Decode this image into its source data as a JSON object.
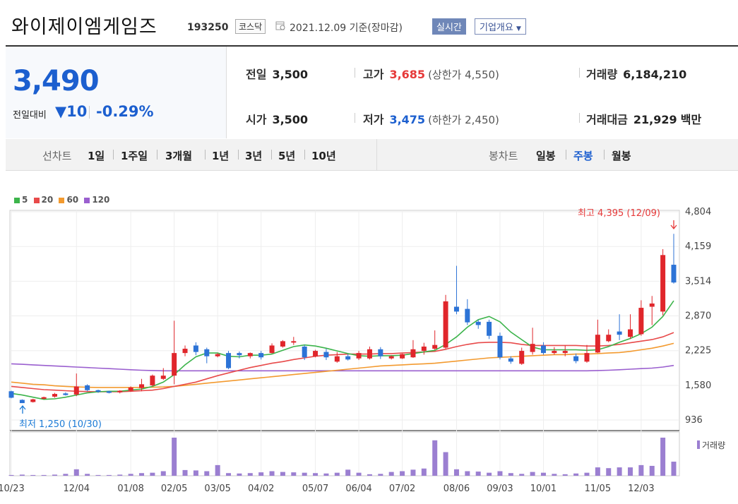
{
  "header": {
    "company": "와이제이엠게임즈",
    "code": "193250",
    "market": "코스닥",
    "date": "2021.12.09 기준(장마감)",
    "realtime": "실시간",
    "overview": "기업개요"
  },
  "quote": {
    "price": "3,490",
    "change_label": "전일대비",
    "change_value": "▼10",
    "change_rate": "-0.29%",
    "prev_label": "전일",
    "prev": "3,500",
    "open_label": "시가",
    "open": "3,500",
    "high_label": "고가",
    "high": "3,685",
    "upper_limit": "(상한가 4,550)",
    "low_label": "저가",
    "low": "3,475",
    "lower_limit": "(하한가 2,450)",
    "volume_label": "거래량",
    "volume": "6,184,210",
    "value_label": "거래대금",
    "value": "21,929",
    "value_unit": "백만"
  },
  "tabs": {
    "line_label": "선차트",
    "periods": [
      "1일",
      "1주일",
      "3개월",
      "1년",
      "3년",
      "5년",
      "10년"
    ],
    "candle_label": "봉차트",
    "candles": [
      "일봉",
      "주봉",
      "월봉"
    ],
    "active_candle": "주봉"
  },
  "legend": [
    {
      "label": "5",
      "color": "#3cb44b"
    },
    {
      "label": "20",
      "color": "#e84a4a"
    },
    {
      "label": "60",
      "color": "#f39a2f"
    },
    {
      "label": "120",
      "color": "#9a5fcf"
    }
  ],
  "chart_data": {
    "type": "candlestick",
    "y_ticks": [
      "4,804",
      "4,159",
      "3,514",
      "2,870",
      "2,225",
      "1,580",
      "936"
    ],
    "ylim": [
      936,
      4804
    ],
    "x_ticks": [
      "10/23",
      "12/04",
      "01/08",
      "02/05",
      "03/05",
      "04/02",
      "05/07",
      "06/04",
      "07/02",
      "08/06",
      "09/03",
      "10/01",
      "11/05",
      "12/03"
    ],
    "x_tick_index": [
      0,
      6,
      11,
      15,
      19,
      23,
      28,
      32,
      36,
      41,
      45,
      49,
      54,
      58
    ],
    "max_annotation": "최고 4,395 (12/09)",
    "min_annotation": "최저 1,250 (10/30)",
    "volume_label": "거래량",
    "candles": [
      {
        "o": 1470,
        "c": 1350,
        "h": 1480,
        "l": 1340
      },
      {
        "o": 1310,
        "c": 1250,
        "h": 1320,
        "l": 1250
      },
      {
        "o": 1270,
        "c": 1320,
        "h": 1330,
        "l": 1260
      },
      {
        "o": 1330,
        "c": 1360,
        "h": 1370,
        "l": 1320
      },
      {
        "o": 1370,
        "c": 1420,
        "h": 1440,
        "l": 1350
      },
      {
        "o": 1430,
        "c": 1400,
        "h": 1450,
        "l": 1390
      },
      {
        "o": 1410,
        "c": 1560,
        "h": 1800,
        "l": 1380
      },
      {
        "o": 1580,
        "c": 1490,
        "h": 1600,
        "l": 1470
      },
      {
        "o": 1490,
        "c": 1460,
        "h": 1500,
        "l": 1440
      },
      {
        "o": 1470,
        "c": 1440,
        "h": 1480,
        "l": 1430
      },
      {
        "o": 1450,
        "c": 1480,
        "h": 1490,
        "l": 1430
      },
      {
        "o": 1480,
        "c": 1540,
        "h": 1560,
        "l": 1460
      },
      {
        "o": 1530,
        "c": 1600,
        "h": 1700,
        "l": 1470
      },
      {
        "o": 1580,
        "c": 1760,
        "h": 1780,
        "l": 1560
      },
      {
        "o": 1700,
        "c": 1760,
        "h": 1900,
        "l": 1680
      },
      {
        "o": 1760,
        "c": 2180,
        "h": 2780,
        "l": 1600
      },
      {
        "o": 2180,
        "c": 2260,
        "h": 2320,
        "l": 2120
      },
      {
        "o": 2320,
        "c": 2200,
        "h": 2380,
        "l": 2140
      },
      {
        "o": 2250,
        "c": 2120,
        "h": 2280,
        "l": 1990
      },
      {
        "o": 2120,
        "c": 2160,
        "h": 2180,
        "l": 2100
      },
      {
        "o": 2180,
        "c": 1900,
        "h": 2220,
        "l": 1880
      },
      {
        "o": 2180,
        "c": 2140,
        "h": 2210,
        "l": 2080
      },
      {
        "o": 2120,
        "c": 2180,
        "h": 2190,
        "l": 2080
      },
      {
        "o": 2180,
        "c": 2100,
        "h": 2220,
        "l": 2060
      },
      {
        "o": 2180,
        "c": 2320,
        "h": 2360,
        "l": 2170
      },
      {
        "o": 2300,
        "c": 2400,
        "h": 2420,
        "l": 2280
      },
      {
        "o": 2380,
        "c": 2400,
        "h": 2480,
        "l": 2330
      },
      {
        "o": 2300,
        "c": 2100,
        "h": 2330,
        "l": 2050
      },
      {
        "o": 2120,
        "c": 2220,
        "h": 2240,
        "l": 2100
      },
      {
        "o": 2200,
        "c": 2100,
        "h": 2260,
        "l": 2050
      },
      {
        "o": 2020,
        "c": 2120,
        "h": 2200,
        "l": 2000
      },
      {
        "o": 2120,
        "c": 2060,
        "h": 2160,
        "l": 2040
      },
      {
        "o": 2080,
        "c": 2180,
        "h": 2220,
        "l": 2050
      },
      {
        "o": 2080,
        "c": 2250,
        "h": 2300,
        "l": 2060
      },
      {
        "o": 2250,
        "c": 2120,
        "h": 2290,
        "l": 2070
      },
      {
        "o": 2080,
        "c": 2120,
        "h": 2140,
        "l": 2060
      },
      {
        "o": 2080,
        "c": 2160,
        "h": 2170,
        "l": 2070
      },
      {
        "o": 2100,
        "c": 2250,
        "h": 2420,
        "l": 2090
      },
      {
        "o": 2220,
        "c": 2300,
        "h": 2370,
        "l": 2150
      },
      {
        "o": 2260,
        "c": 2330,
        "h": 2600,
        "l": 2240
      },
      {
        "o": 2280,
        "c": 3140,
        "h": 3260,
        "l": 2260
      },
      {
        "o": 3040,
        "c": 2950,
        "h": 3800,
        "l": 2900
      },
      {
        "o": 3000,
        "c": 2750,
        "h": 3180,
        "l": 2700
      },
      {
        "o": 2760,
        "c": 2700,
        "h": 2800,
        "l": 2630
      },
      {
        "o": 2760,
        "c": 2500,
        "h": 2800,
        "l": 2440
      },
      {
        "o": 2500,
        "c": 2100,
        "h": 2560,
        "l": 2060
      },
      {
        "o": 2080,
        "c": 2020,
        "h": 2120,
        "l": 1980
      },
      {
        "o": 1980,
        "c": 2220,
        "h": 2280,
        "l": 1960
      },
      {
        "o": 2200,
        "c": 2350,
        "h": 2650,
        "l": 2150
      },
      {
        "o": 2320,
        "c": 2180,
        "h": 2380,
        "l": 2150
      },
      {
        "o": 2180,
        "c": 2220,
        "h": 2290,
        "l": 2150
      },
      {
        "o": 2180,
        "c": 2220,
        "h": 2320,
        "l": 2120
      },
      {
        "o": 2120,
        "c": 2030,
        "h": 2170,
        "l": 1990
      },
      {
        "o": 2020,
        "c": 2180,
        "h": 2330,
        "l": 2000
      },
      {
        "o": 2190,
        "c": 2520,
        "h": 2800,
        "l": 2180
      },
      {
        "o": 2400,
        "c": 2520,
        "h": 2620,
        "l": 2380
      },
      {
        "o": 2580,
        "c": 2520,
        "h": 2900,
        "l": 2420
      },
      {
        "o": 2480,
        "c": 2620,
        "h": 2900,
        "l": 2440
      },
      {
        "o": 2530,
        "c": 3020,
        "h": 3160,
        "l": 2500
      },
      {
        "o": 3040,
        "c": 3100,
        "h": 3240,
        "l": 2700
      },
      {
        "o": 2950,
        "c": 4000,
        "h": 4110,
        "l": 2880
      },
      {
        "o": 3820,
        "c": 3490,
        "h": 4395,
        "l": 3470
      }
    ],
    "ma5": [
      1430,
      1400,
      1360,
      1320,
      1330,
      1360,
      1400,
      1440,
      1460,
      1470,
      1470,
      1490,
      1510,
      1560,
      1640,
      1780,
      1960,
      2110,
      2180,
      2180,
      2120,
      2110,
      2140,
      2140,
      2160,
      2230,
      2300,
      2330,
      2310,
      2270,
      2220,
      2170,
      2130,
      2120,
      2130,
      2130,
      2140,
      2170,
      2200,
      2230,
      2340,
      2480,
      2660,
      2800,
      2860,
      2760,
      2570,
      2430,
      2290,
      2240,
      2240,
      2240,
      2240,
      2230,
      2240,
      2300,
      2380,
      2450,
      2540,
      2660,
      2860,
      3150
    ],
    "ma20": [
      1560,
      1540,
      1520,
      1500,
      1490,
      1480,
      1470,
      1465,
      1460,
      1460,
      1460,
      1470,
      1480,
      1490,
      1520,
      1560,
      1600,
      1640,
      1700,
      1760,
      1810,
      1860,
      1910,
      1950,
      1990,
      2020,
      2060,
      2090,
      2120,
      2140,
      2150,
      2160,
      2160,
      2160,
      2170,
      2170,
      2180,
      2190,
      2200,
      2210,
      2250,
      2300,
      2340,
      2370,
      2380,
      2380,
      2370,
      2340,
      2320,
      2320,
      2320,
      2320,
      2320,
      2310,
      2310,
      2320,
      2340,
      2370,
      2400,
      2430,
      2480,
      2560
    ],
    "ma60": [
      1640,
      1620,
      1600,
      1590,
      1570,
      1560,
      1550,
      1545,
      1540,
      1540,
      1540,
      1540,
      1540,
      1545,
      1550,
      1560,
      1580,
      1600,
      1620,
      1640,
      1660,
      1680,
      1700,
      1720,
      1740,
      1760,
      1780,
      1800,
      1820,
      1840,
      1860,
      1880,
      1900,
      1920,
      1940,
      1950,
      1960,
      1970,
      1980,
      1990,
      2010,
      2030,
      2050,
      2070,
      2090,
      2100,
      2110,
      2120,
      2130,
      2140,
      2150,
      2150,
      2160,
      2160,
      2170,
      2180,
      2190,
      2210,
      2240,
      2270,
      2310,
      2360
    ],
    "ma120": [
      1980,
      1970,
      1960,
      1950,
      1940,
      1930,
      1920,
      1910,
      1900,
      1890,
      1880,
      1870,
      1860,
      1855,
      1850,
      1850,
      1850,
      1850,
      1850,
      1850,
      1850,
      1850,
      1850,
      1850,
      1850,
      1850,
      1850,
      1850,
      1850,
      1850,
      1850,
      1850,
      1850,
      1850,
      1850,
      1850,
      1850,
      1850,
      1850,
      1850,
      1850,
      1850,
      1850,
      1850,
      1850,
      1850,
      1850,
      1850,
      1850,
      1850,
      1850,
      1850,
      1850,
      1850,
      1855,
      1860,
      1870,
      1880,
      1890,
      1900,
      1920,
      1950
    ],
    "volume": [
      0.02,
      0.03,
      0.02,
      0.02,
      0.03,
      0.05,
      0.17,
      0.05,
      0.02,
      0.02,
      0.03,
      0.05,
      0.07,
      0.08,
      0.12,
      1.0,
      0.15,
      0.14,
      0.12,
      0.28,
      0.07,
      0.06,
      0.07,
      0.09,
      0.12,
      0.1,
      0.09,
      0.08,
      0.07,
      0.06,
      0.08,
      0.16,
      0.08,
      0.04,
      0.05,
      0.1,
      0.12,
      0.16,
      0.19,
      0.93,
      0.62,
      0.17,
      0.12,
      0.11,
      0.08,
      0.12,
      0.07,
      0.05,
      0.1,
      0.08,
      0.05,
      0.04,
      0.06,
      0.08,
      0.22,
      0.2,
      0.22,
      0.22,
      0.28,
      0.26,
      1.0,
      0.37
    ]
  }
}
